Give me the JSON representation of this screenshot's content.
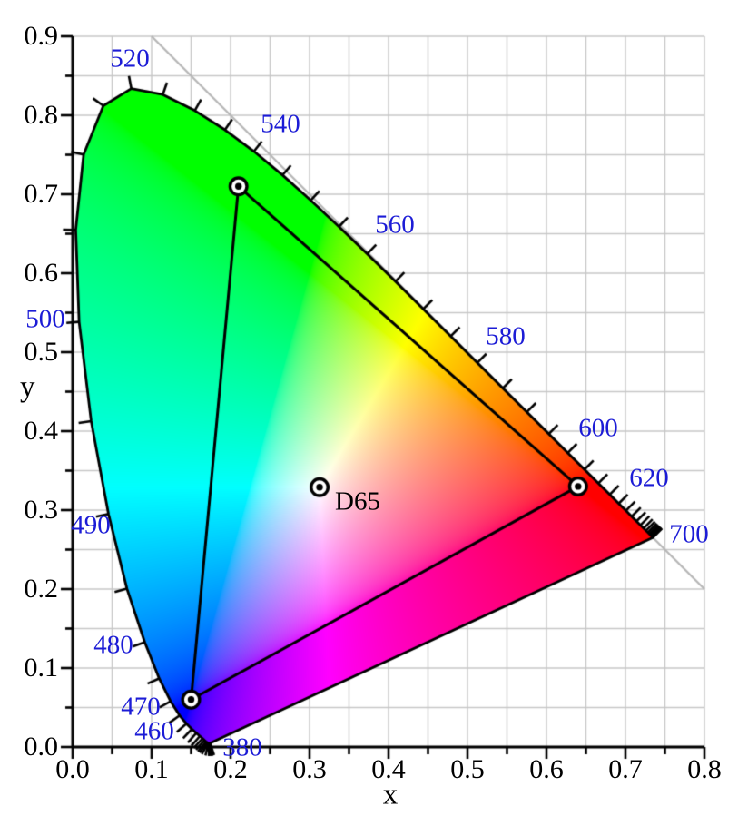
{
  "chart_data": {
    "type": "scatter",
    "description": "CIE 1931 xy chromaticity diagram",
    "xlabel": "x",
    "ylabel": "y",
    "xlim": [
      0.0,
      0.8
    ],
    "ylim": [
      0.0,
      0.9
    ],
    "x_ticks": [
      0.0,
      0.1,
      0.2,
      0.3,
      0.4,
      0.5,
      0.6,
      0.7,
      0.8
    ],
    "x_tick_labels": [
      "0.0",
      "0.1",
      "0.2",
      "0.3",
      "0.4",
      "0.5",
      "0.6",
      "0.7",
      "0.8"
    ],
    "y_ticks": [
      0.0,
      0.1,
      0.2,
      0.3,
      0.4,
      0.5,
      0.6,
      0.7,
      0.8,
      0.9
    ],
    "y_tick_labels": [
      "0.0",
      "0.1",
      "0.2",
      "0.3",
      "0.4",
      "0.5",
      "0.6",
      "0.7",
      "0.8",
      "0.9"
    ],
    "grid": {
      "on": true,
      "step": 0.05,
      "color": "#c6c6c6"
    },
    "diagonal_line": {
      "from": {
        "x": 0.1,
        "y": 0.9
      },
      "to": {
        "x": 0.8,
        "y": 0.2
      },
      "color": "#b7b7b7"
    },
    "spectral_locus": {
      "wavelengths_nm": [
        380,
        385,
        390,
        395,
        400,
        405,
        410,
        415,
        420,
        425,
        430,
        435,
        440,
        445,
        450,
        455,
        460,
        465,
        470,
        475,
        480,
        485,
        490,
        495,
        500,
        505,
        510,
        515,
        520,
        525,
        530,
        535,
        540,
        545,
        550,
        555,
        560,
        565,
        570,
        575,
        580,
        585,
        590,
        595,
        600,
        605,
        610,
        615,
        620,
        625,
        630,
        635,
        640,
        645,
        650,
        655,
        660,
        665,
        670,
        675,
        680,
        685,
        690,
        695,
        700
      ],
      "x": [
        0.1741,
        0.174,
        0.1738,
        0.1736,
        0.1733,
        0.173,
        0.1726,
        0.1721,
        0.1714,
        0.1703,
        0.1689,
        0.1669,
        0.1644,
        0.1611,
        0.1566,
        0.151,
        0.144,
        0.1355,
        0.1241,
        0.1096,
        0.0913,
        0.0687,
        0.0454,
        0.0235,
        0.0082,
        0.0039,
        0.0139,
        0.0389,
        0.0743,
        0.1142,
        0.1547,
        0.1929,
        0.2296,
        0.2658,
        0.3016,
        0.3373,
        0.3731,
        0.4087,
        0.4441,
        0.4788,
        0.5125,
        0.5448,
        0.5752,
        0.6029,
        0.627,
        0.6482,
        0.6658,
        0.6801,
        0.6915,
        0.7006,
        0.7079,
        0.714,
        0.719,
        0.723,
        0.726,
        0.7283,
        0.73,
        0.7311,
        0.732,
        0.7327,
        0.7334,
        0.734,
        0.7344,
        0.7346,
        0.7347
      ],
      "y": [
        0.005,
        0.005,
        0.0049,
        0.0049,
        0.0048,
        0.0048,
        0.0048,
        0.0048,
        0.0051,
        0.0058,
        0.0069,
        0.0086,
        0.0109,
        0.0138,
        0.0177,
        0.0227,
        0.0297,
        0.0399,
        0.0578,
        0.0868,
        0.1327,
        0.2007,
        0.295,
        0.4127,
        0.5384,
        0.6548,
        0.7502,
        0.812,
        0.8338,
        0.8262,
        0.8059,
        0.7816,
        0.7543,
        0.7243,
        0.6923,
        0.6589,
        0.6245,
        0.5896,
        0.5547,
        0.5202,
        0.4866,
        0.4544,
        0.4242,
        0.3965,
        0.3725,
        0.3514,
        0.334,
        0.3197,
        0.3083,
        0.2993,
        0.292,
        0.2859,
        0.2809,
        0.277,
        0.274,
        0.2717,
        0.27,
        0.2689,
        0.268,
        0.2673,
        0.2666,
        0.266,
        0.2656,
        0.2654,
        0.2653
      ]
    },
    "wavelength_labels": [
      {
        "text": "380",
        "x": 0.2149,
        "y": -0.0011
      },
      {
        "text": "460",
        "x": 0.1034,
        "y": 0.0195
      },
      {
        "text": "470",
        "x": 0.0862,
        "y": 0.0506
      },
      {
        "text": "480",
        "x": 0.0517,
        "y": 0.1287
      },
      {
        "text": "490",
        "x": 0.023,
        "y": 0.2805
      },
      {
        "text": "500",
        "x": -0.0345,
        "y": 0.5414
      },
      {
        "text": "520",
        "x": 0.0724,
        "y": 0.8713
      },
      {
        "text": "540",
        "x": 0.2632,
        "y": 0.7885
      },
      {
        "text": "560",
        "x": 0.408,
        "y": 0.6609
      },
      {
        "text": "580",
        "x": 0.5483,
        "y": 0.5195
      },
      {
        "text": "600",
        "x": 0.6655,
        "y": 0.4034
      },
      {
        "text": "620",
        "x": 0.7299,
        "y": 0.3402
      },
      {
        "text": "700",
        "x": 0.7805,
        "y": 0.269
      }
    ],
    "gamut_triangle": {
      "points": [
        {
          "name": "red-primary",
          "x": 0.64,
          "y": 0.33
        },
        {
          "name": "green-primary",
          "x": 0.21,
          "y": 0.71
        },
        {
          "name": "blue-primary",
          "x": 0.15,
          "y": 0.06
        }
      ],
      "line_color": "#000000"
    },
    "white_point": {
      "label": "D65",
      "x": 0.3127,
      "y": 0.329
    },
    "colors": {
      "axis": "#000000",
      "locus_outline": "#000000",
      "wavelength_label": "#1c1cd6",
      "tick_label": "#000000",
      "marker_fill": "#ffffff",
      "marker_ring": "#000000"
    }
  }
}
